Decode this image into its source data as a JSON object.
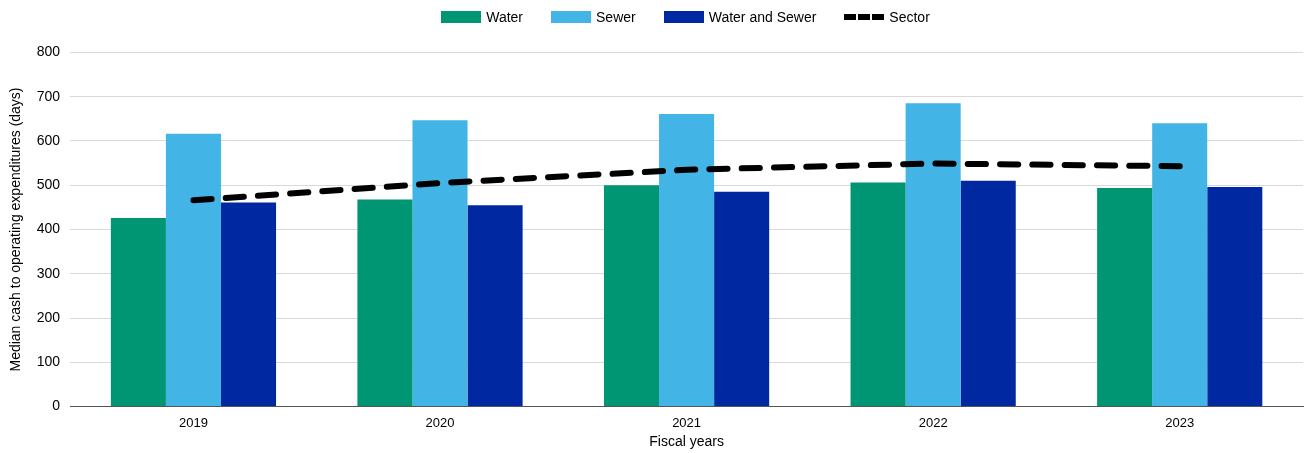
{
  "chart_data": {
    "type": "bar",
    "xlabel": "Fiscal years",
    "ylabel": "Median cash to operating expenditures (days)",
    "categories": [
      "2019",
      "2020",
      "2021",
      "2022",
      "2023"
    ],
    "series": [
      {
        "name": "Water",
        "color": "#009673",
        "values": [
          426,
          468,
          500,
          506,
          494
        ]
      },
      {
        "name": "Sewer",
        "color": "#42b4e6",
        "values": [
          616,
          647,
          661,
          685,
          640
        ]
      },
      {
        "name": "Water and Sewer",
        "color": "#0028a0",
        "values": [
          461,
          455,
          485,
          510,
          496
        ]
      },
      {
        "name": "Sector",
        "type": "line",
        "color": "#000000",
        "line_style": "dashed",
        "values": [
          466,
          505,
          535,
          549,
          543
        ]
      }
    ],
    "ylim": [
      0,
      800
    ],
    "yticks": [
      0,
      100,
      200,
      300,
      400,
      500,
      600,
      700,
      800
    ],
    "grid": "y",
    "legend": "top",
    "marker": "none"
  }
}
